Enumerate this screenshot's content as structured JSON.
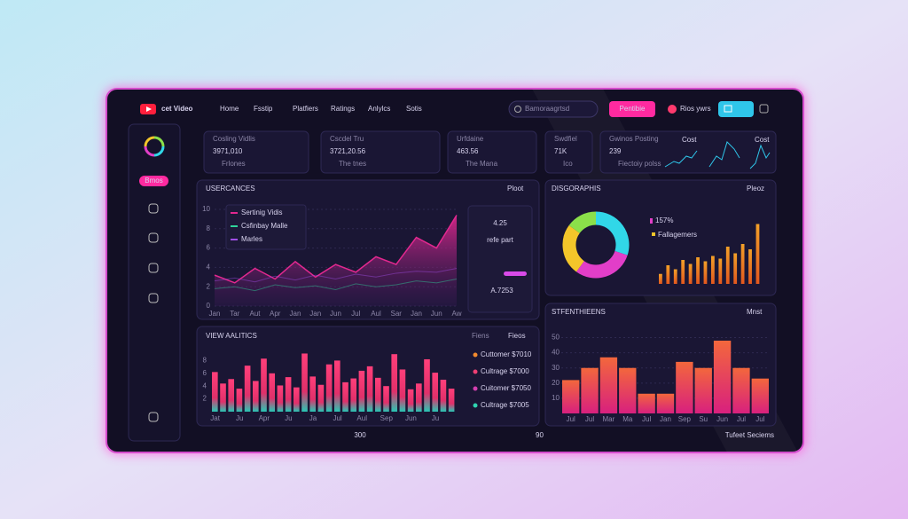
{
  "header": {
    "brand": "cet Video",
    "nav": [
      "Home",
      "Fsstip",
      "Platfiers",
      "Ratings",
      "Anlylcs",
      "Sotis"
    ],
    "search": "Bamoraagrtsd",
    "button": "Pentibie",
    "user": "Rios ywrs"
  },
  "sidebar": {
    "active": "Bmos"
  },
  "stats": [
    {
      "label": "Cosling Vidlis",
      "value": "3971,010",
      "sub": "Frlones"
    },
    {
      "label": "Cscdel Tru",
      "value": "3721,20.56",
      "sub": "The tnes"
    },
    {
      "label": "Urfdaine",
      "value": "463.56",
      "sub": "The Mana"
    },
    {
      "label": "Swdfiel",
      "value": "71K",
      "sub": "Ico"
    },
    {
      "label": "Gwinos Posting",
      "value": "239",
      "sub": "Fiectoiy polss",
      "tags": [
        "Cost",
        "Cost"
      ]
    }
  ],
  "usercances": {
    "title": "USERCANCES",
    "menu": "Ploot",
    "type": "area",
    "categories": [
      "Jan",
      "Tar",
      "Aut",
      "Apr",
      "Jan",
      "Jan",
      "Jun",
      "Jul",
      "Aul",
      "Sar",
      "Jan",
      "Jun",
      "Aw"
    ],
    "series": [
      {
        "name": "Sertinig Vidis",
        "color": "#e2288f",
        "values": [
          3.2,
          2.4,
          3.9,
          2.8,
          4.6,
          3.0,
          4.3,
          3.5,
          5.1,
          4.3,
          7.1,
          6.0,
          9.4
        ]
      },
      {
        "name": "Csfinbay Malle",
        "color": "#2fd39a",
        "values": [
          1.8,
          2.0,
          1.6,
          2.2,
          1.9,
          2.1,
          1.7,
          2.3,
          2.0,
          2.2,
          2.6,
          2.4,
          2.8
        ]
      },
      {
        "name": "Marles",
        "color": "#a04ee6",
        "values": [
          2.6,
          2.9,
          2.5,
          3.1,
          2.7,
          3.2,
          2.8,
          3.3,
          3.0,
          3.4,
          3.6,
          3.5,
          3.9
        ]
      }
    ],
    "ylim": [
      0,
      10
    ],
    "yticks": [
      0,
      2,
      4,
      6,
      8,
      10
    ],
    "highlight": "4.25",
    "caption": "refe part",
    "secondary": "A.7253"
  },
  "disgoraphis": {
    "title": "DISGORAPHIS",
    "menu": "Pleoz",
    "type": "pie",
    "slices": [
      {
        "color": "#31d7e8",
        "value": 30
      },
      {
        "color": "#e23ec8",
        "value": 30
      },
      {
        "color": "#f4c62a",
        "value": 25
      },
      {
        "color": "#8be04a",
        "value": 15
      }
    ],
    "percent": "157%",
    "legend": "Fallagemers",
    "bars": {
      "type": "bar",
      "color": "#f3a028",
      "values": [
        1.5,
        2.8,
        2.2,
        3.6,
        3.0,
        4.0,
        3.4,
        4.2,
        3.8,
        5.6,
        4.6,
        6.0,
        5.2,
        9.0
      ],
      "ylim": [
        0,
        10
      ]
    }
  },
  "view_analytics": {
    "title": "VIEW AALITICS",
    "menu": [
      "Fiens",
      "Fieos"
    ],
    "type": "bar",
    "color": "#ff3f7a",
    "categories": [
      "Jat",
      null,
      null,
      "Ju",
      null,
      null,
      "Apr",
      null,
      null,
      "Ju",
      null,
      null,
      "Ja",
      null,
      null,
      "Jul",
      null,
      null,
      "Aul",
      null,
      null,
      "Sep",
      null,
      null,
      "Jun",
      null,
      null,
      "Ju",
      null,
      null
    ],
    "values": [
      6.2,
      4.4,
      5.1,
      3.6,
      7.2,
      4.8,
      8.3,
      6.0,
      4.1,
      5.4,
      3.8,
      9.1,
      5.5,
      4.2,
      7.4,
      8.0,
      4.6,
      5.2,
      6.4,
      7.1,
      5.3,
      4.0,
      9.0,
      6.6,
      3.5,
      4.4,
      8.2,
      6.1,
      5.0,
      3.6
    ],
    "ylim": [
      0,
      10
    ],
    "yticks": [
      2,
      4,
      6,
      8
    ],
    "legend": [
      {
        "label": "Cuttomer $7010",
        "color": "#f28a2e"
      },
      {
        "label": "Cultrage $7000",
        "color": "#ef3f73"
      },
      {
        "label": "Cuitomer $7050",
        "color": "#d43fb0"
      },
      {
        "label": "Cultrage $7005",
        "color": "#2fd3b0"
      }
    ]
  },
  "stfenthieens": {
    "title": "STFENTHIEENS",
    "menu": "Mnst",
    "type": "bar",
    "color": "#f3673c",
    "categories": [
      "Jul",
      "Jul",
      "Mar",
      "Ma",
      "Jul",
      "Jan",
      "Sep",
      "Su",
      "Jun",
      "Jul",
      "Jul"
    ],
    "values": [
      22,
      30,
      37,
      30,
      13,
      13,
      34,
      30,
      48,
      30,
      23
    ],
    "ylim": [
      0,
      55
    ],
    "yticks": [
      10,
      20,
      30,
      40,
      50
    ]
  },
  "footer": {
    "left": "300",
    "right": "90",
    "status": "Tufeet Seciems"
  }
}
